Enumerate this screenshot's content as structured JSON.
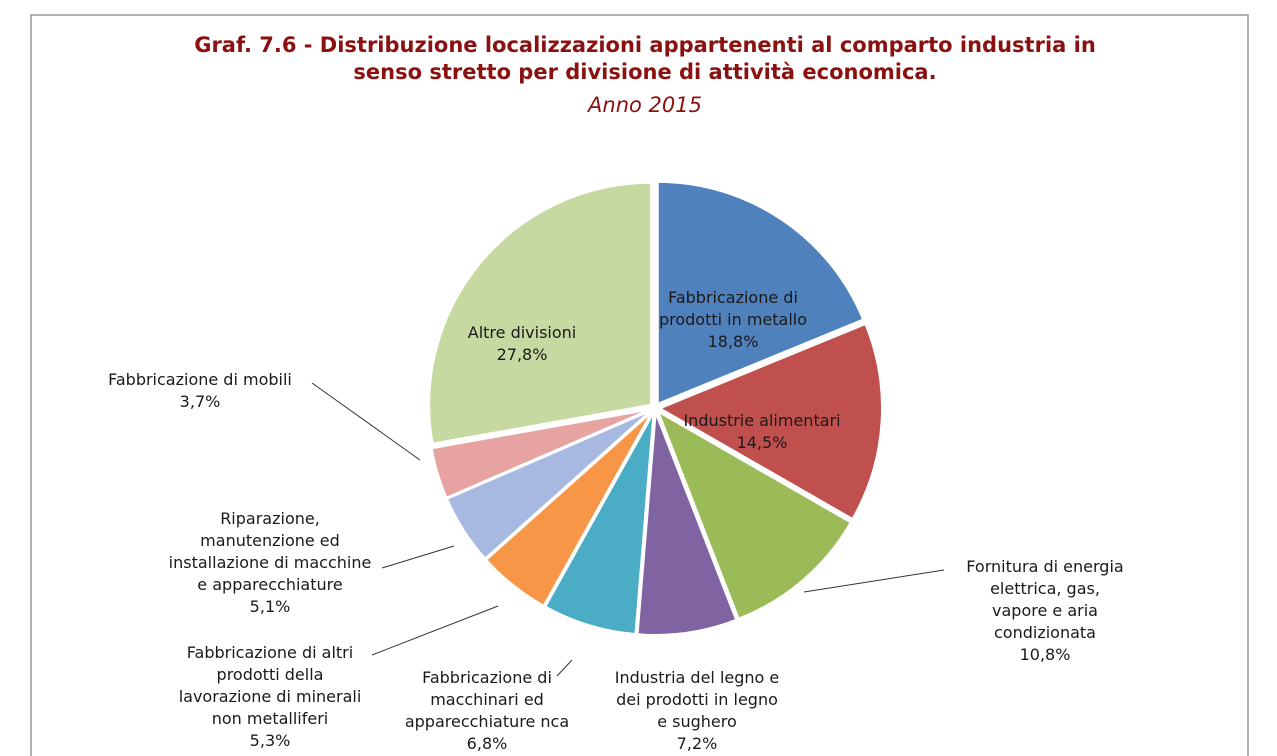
{
  "chart_data": {
    "type": "pie",
    "title": "Graf. 7.6 - Distribuzione localizzazioni appartenenti al comparto industria in\nsenso stretto per divisione di attività economica.",
    "subtitle": "Anno 2015",
    "categories": [
      "Fabbricazione di\nprodotti in metallo",
      "Industrie alimentari",
      "Fornitura di energia\nelettrica, gas,\nvapore e aria\ncondizionata",
      "Industria del legno e\ndei prodotti in legno\ne sughero",
      "Fabbricazione di\nmacchinari ed\napparecchiature nca",
      "Fabbricazione di altri\nprodotti della\nlavorazione di minerali\nnon metalliferi",
      "Riparazione,\nmanutenzione ed\ninstallazione di macchine\ne apparecchiature",
      "Fabbricazione di mobili",
      "Altre divisioni"
    ],
    "values": [
      18.8,
      14.5,
      10.8,
      7.2,
      6.8,
      5.3,
      5.1,
      3.7,
      27.8
    ],
    "value_labels": [
      "18,8%",
      "14,5%",
      "10,8%",
      "7,2%",
      "6,8%",
      "5,3%",
      "5,1%",
      "3,7%",
      "27,8%"
    ],
    "colors": [
      "#4f81bd",
      "#c0504d",
      "#9bbb59",
      "#8064a2",
      "#4bacc6",
      "#f79646",
      "#a7b9e1",
      "#e6a3a2",
      "#c6d9a1"
    ]
  }
}
